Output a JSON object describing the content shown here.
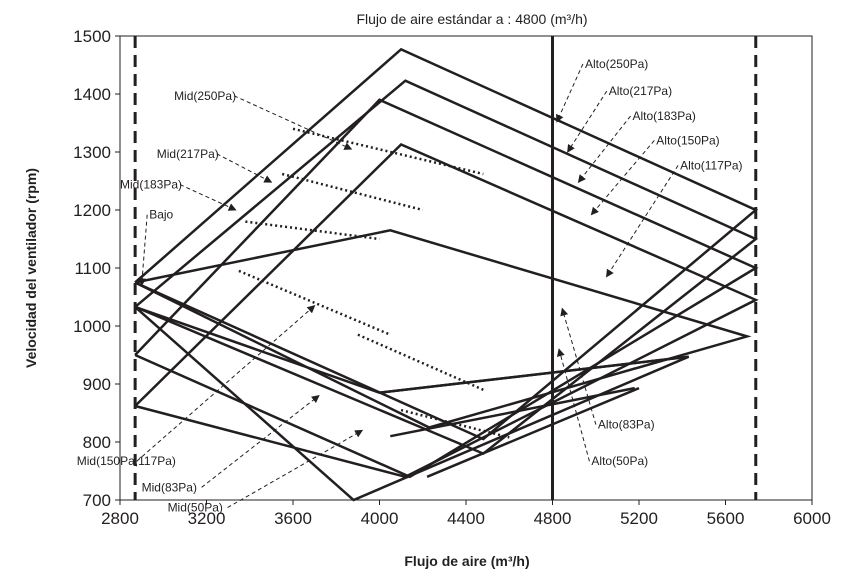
{
  "chart_data": {
    "type": "line",
    "title": "Flujo de aire estándar a : 4800 (m³/h)",
    "xlabel": "Flujo de aire (m³/h)",
    "ylabel": "Velocidad del ventilador (rpm)",
    "xlim": [
      2800,
      6000
    ],
    "ylim": [
      700,
      1500
    ],
    "xticks": [
      "2800",
      "3200",
      "3600",
      "4000",
      "4400",
      "4800",
      "5200",
      "5600",
      "6000"
    ],
    "yticks": [
      "700",
      "800",
      "900",
      "1000",
      "1100",
      "1200",
      "1300",
      "1400",
      "1500"
    ],
    "grid": false,
    "colors": {
      "line": "#231f20",
      "background": "#ffffff"
    },
    "reference_lines": [
      {
        "x": 2870,
        "style": "dashed"
      },
      {
        "x": 5740,
        "style": "dashed"
      },
      {
        "x": 4800,
        "style": "solid"
      }
    ],
    "envelopes": [
      {
        "name": "250Pa",
        "points": [
          [
            2870,
            1075
          ],
          [
            4100,
            1477
          ],
          [
            5740,
            1200
          ],
          [
            4480,
            805
          ],
          [
            2870,
            1075
          ]
        ]
      },
      {
        "name": "217Pa",
        "points": [
          [
            2870,
            1033
          ],
          [
            4120,
            1423
          ],
          [
            5740,
            1150
          ],
          [
            4480,
            780
          ],
          [
            2870,
            1033
          ]
        ]
      },
      {
        "name": "183Pa",
        "points": [
          [
            2870,
            950
          ],
          [
            4000,
            1390
          ],
          [
            5740,
            1100
          ],
          [
            4140,
            740
          ],
          [
            2870,
            950
          ]
        ]
      },
      {
        "name": "150Pa",
        "points": [
          [
            2870,
            862
          ],
          [
            4100,
            1313
          ],
          [
            5740,
            1045
          ],
          [
            4120,
            740
          ],
          [
            2870,
            862
          ]
        ]
      },
      {
        "name": "83Pa",
        "points": [
          [
            2870,
            1075
          ],
          [
            4050,
            1165
          ],
          [
            5700,
            982
          ],
          [
            4230,
            825
          ],
          [
            2870,
            1075
          ]
        ]
      },
      {
        "name": "50Pa",
        "points": [
          [
            2870,
            1033
          ],
          [
            4000,
            885
          ],
          [
            5430,
            947
          ],
          [
            3880,
            700
          ],
          [
            2870,
            1033
          ]
        ]
      }
    ],
    "extra_lines": [
      {
        "points": [
          [
            4220,
            740
          ],
          [
            5200,
            893
          ]
        ]
      },
      {
        "points": [
          [
            4050,
            810
          ],
          [
            5180,
            893
          ]
        ]
      },
      {
        "points": [
          [
            4000,
            885
          ],
          [
            5430,
            947
          ]
        ]
      }
    ],
    "dotted_lines": [
      {
        "points": [
          [
            3600,
            1340
          ],
          [
            4480,
            1262
          ]
        ]
      },
      {
        "points": [
          [
            3550,
            1262
          ],
          [
            4200,
            1200
          ]
        ]
      },
      {
        "points": [
          [
            3380,
            1180
          ],
          [
            4000,
            1150
          ]
        ]
      },
      {
        "points": [
          [
            3350,
            1095
          ],
          [
            4050,
            985
          ]
        ]
      },
      {
        "points": [
          [
            3900,
            985
          ],
          [
            4480,
            890
          ]
        ]
      },
      {
        "points": [
          [
            4100,
            855
          ],
          [
            4600,
            808
          ]
        ]
      }
    ],
    "annotations": [
      {
        "text": "Alto(250Pa)",
        "x": 4950,
        "y": 1445,
        "ax": 4820,
        "ay": 1352
      },
      {
        "text": "Alto(217Pa)",
        "x": 5060,
        "y": 1398,
        "ax": 4870,
        "ay": 1300
      },
      {
        "text": "Alto(183Pa)",
        "x": 5170,
        "y": 1355,
        "ax": 4920,
        "ay": 1248
      },
      {
        "text": "Alto(150Pa)",
        "x": 5280,
        "y": 1313,
        "ax": 4980,
        "ay": 1192
      },
      {
        "text": "Alto(117Pa)",
        "x": 5390,
        "y": 1270,
        "ax": 5050,
        "ay": 1085
      },
      {
        "text": "Alto(83Pa)",
        "x": 5010,
        "y": 823,
        "ax": 4845,
        "ay": 1030
      },
      {
        "text": "Alto(50Pa)",
        "x": 4980,
        "y": 760,
        "ax": 4830,
        "ay": 960
      },
      {
        "text": "Mid(250Pa)",
        "x": 3050,
        "y": 1390,
        "ax": 3870,
        "ay": 1305
      },
      {
        "text": "Mid(217Pa)",
        "x": 2970,
        "y": 1290,
        "ax": 3500,
        "ay": 1248
      },
      {
        "text": "Mid(183Pa)",
        "x": 2800,
        "y": 1237,
        "ax": 3335,
        "ay": 1200
      },
      {
        "text": "Bajo",
        "x": 2935,
        "y": 1185,
        "ax": 2900,
        "ay": 1070
      },
      {
        "text": "Mid(150Pa,117Pa)",
        "x": 2600,
        "y": 760,
        "ax": 3700,
        "ay": 1035
      },
      {
        "text": "Mid(83Pa)",
        "x": 2900,
        "y": 715,
        "ax": 3720,
        "ay": 880
      },
      {
        "text": "Mid(50Pa)",
        "x": 3020,
        "y": 680,
        "ax": 3920,
        "ay": 820
      }
    ]
  }
}
